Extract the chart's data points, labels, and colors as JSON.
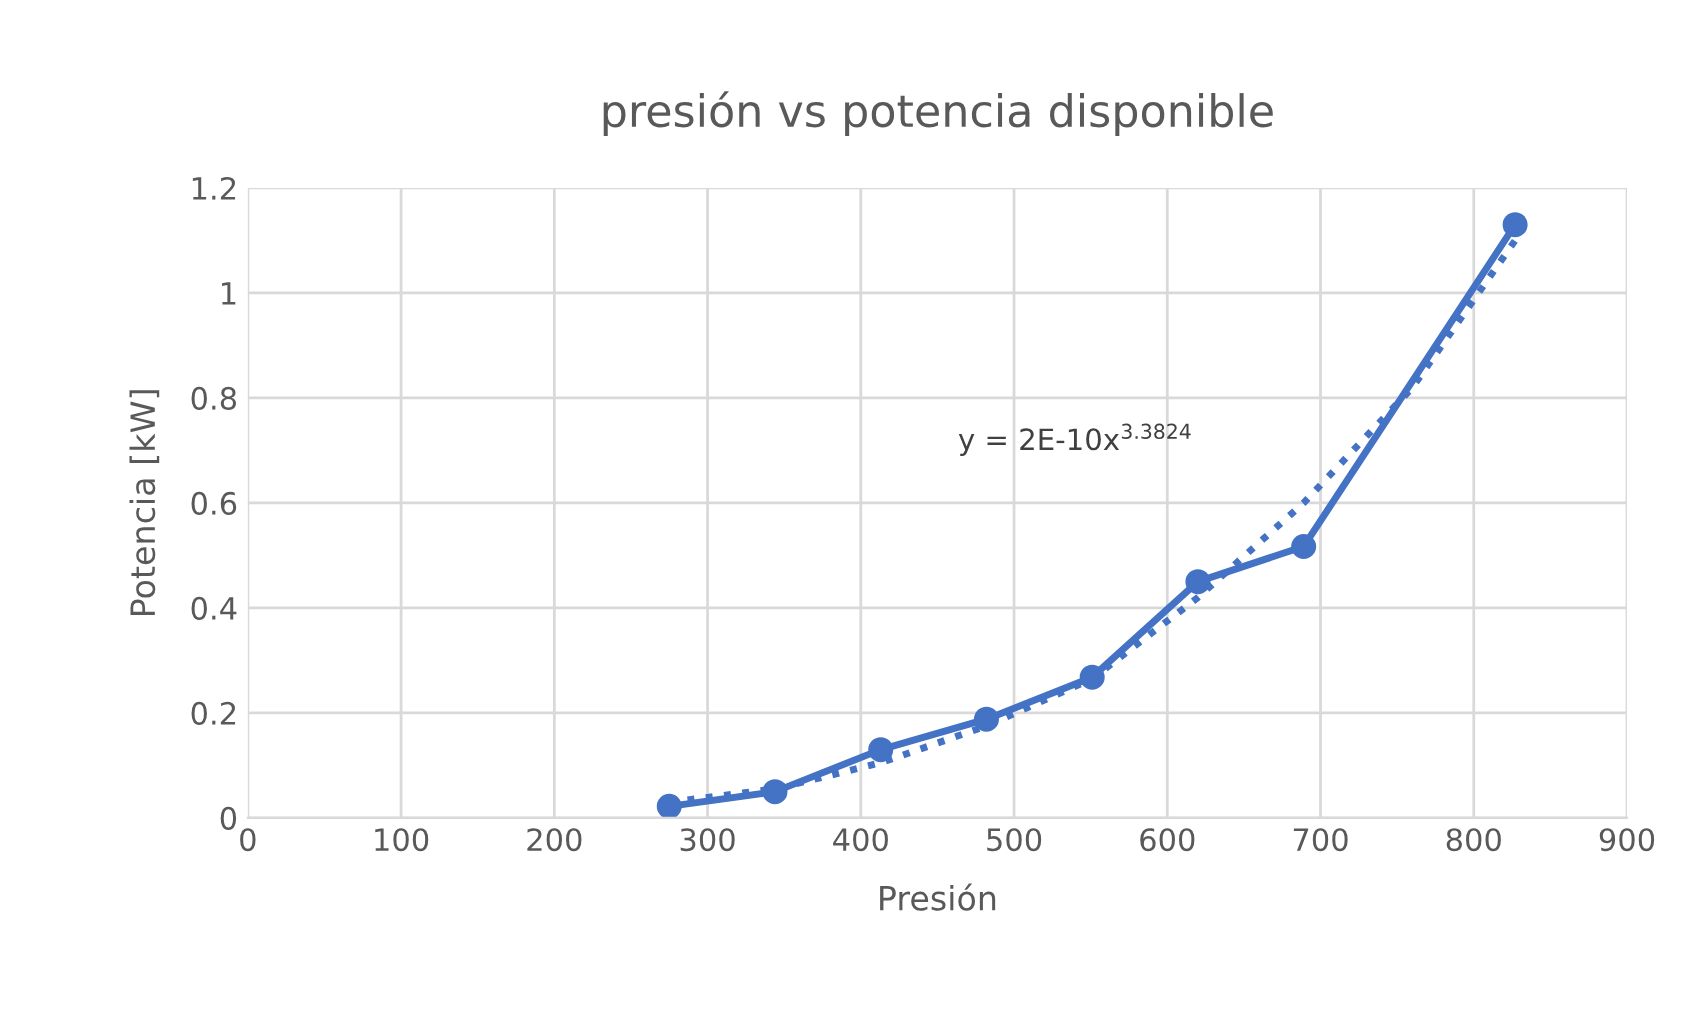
{
  "chart_data": {
    "type": "line",
    "title": "presión vs potencia disponible",
    "xlabel": "Presión",
    "ylabel": "Potencia [kW]",
    "series": [
      {
        "color": "#4472c4",
        "x": [
          275,
          344,
          413,
          482,
          551,
          620,
          689,
          827
        ],
        "values": [
          0.022,
          0.05,
          0.13,
          0.188,
          0.268,
          0.45,
          0.517,
          1.13
        ],
        "marker": "circle",
        "line_style": "solid"
      },
      {
        "type": "line",
        "color": "#4472c4",
        "x": [
          275,
          344,
          413,
          482,
          551,
          620,
          689,
          760,
          827
        ],
        "values": [
          0.03,
          0.055,
          0.105,
          0.175,
          0.265,
          0.42,
          0.6,
          0.82,
          1.1
        ],
        "marker": "none",
        "line_style": "dotted"
      }
    ],
    "annotations": [
      "y = 2E-10x$^{3.3824}$"
    ],
    "xlim": [
      0,
      900
    ],
    "xticks": [
      0,
      100,
      200,
      300,
      400,
      500,
      600,
      700,
      800,
      900
    ],
    "ylim": [
      0,
      1.2
    ],
    "yticks": [
      0,
      0.2,
      0.4,
      0.6,
      0.8,
      1,
      1.2
    ],
    "grid": true
  }
}
